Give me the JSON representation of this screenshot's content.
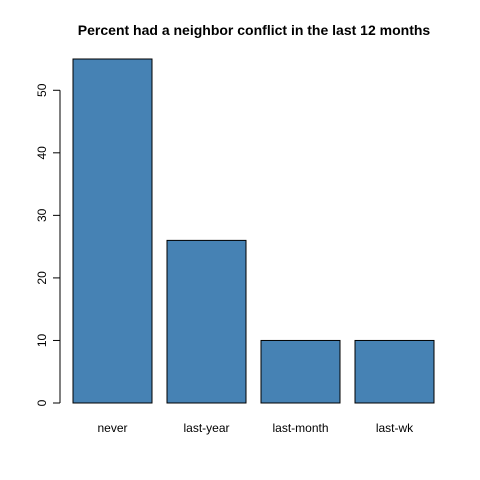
{
  "chart_data": {
    "type": "bar",
    "title": "Percent had a neighbor conflict in the last 12 months",
    "xlabel": "",
    "ylabel": "",
    "categories": [
      "never",
      "last-year",
      "last-month",
      "last-wk"
    ],
    "values": [
      55,
      26,
      10,
      10
    ],
    "ylim": [
      0,
      55
    ],
    "yticks": [
      0,
      10,
      20,
      30,
      40,
      50
    ],
    "bar_color": "#4682b4",
    "grid": false,
    "legend": "none"
  }
}
